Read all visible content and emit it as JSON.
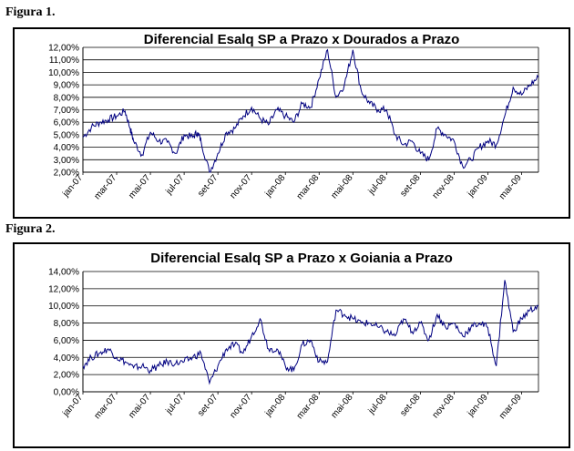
{
  "figures": [
    {
      "label": "Figura 1."
    },
    {
      "label": "Figura 2."
    }
  ],
  "chart_data": [
    {
      "type": "line",
      "title": "Diferencial Esalq SP a Prazo x Dourados a Prazo",
      "xlabel": "",
      "ylabel": "",
      "ylim": [
        0.02,
        0.12
      ],
      "y_ticks": [
        0.02,
        0.03,
        0.04,
        0.05,
        0.06,
        0.07,
        0.08,
        0.09,
        0.1,
        0.11,
        0.12
      ],
      "y_tick_labels": [
        "2,00%",
        "3,00%",
        "4,00%",
        "5,00%",
        "6,00%",
        "7,00%",
        "8,00%",
        "9,00%",
        "10,00%",
        "11,00%",
        "12,00%"
      ],
      "x_ticks": [
        "jan-07",
        "mar-07",
        "mai-07",
        "jul-07",
        "set-07",
        "nov-07",
        "jan-08",
        "mar-08",
        "mai-08",
        "jul-08",
        "set-08",
        "nov-08",
        "jan-09",
        "mar-09"
      ],
      "grid": "horizontal",
      "line_color": "#000080",
      "series": [
        {
          "x": [
            0,
            0.5,
            1,
            1.5,
            2,
            2.5,
            2.8,
            3,
            3.5,
            4,
            4.5,
            5,
            5.5,
            6,
            6.5,
            6.8,
            7,
            7.5,
            8,
            8.5,
            9,
            9.5,
            10,
            10.5,
            11,
            11.5,
            12,
            12.5,
            13,
            13.5,
            14,
            14.5,
            15,
            15.5,
            16,
            16.5,
            17,
            17.5,
            18,
            18.5,
            19,
            19.5,
            20,
            20.5,
            21,
            21.5,
            22,
            22.5,
            23,
            23.5,
            24,
            24.5,
            25,
            25.5,
            26,
            26.5,
            27
          ],
          "y": [
            0.048,
            0.056,
            0.06,
            0.062,
            0.065,
            0.069,
            0.055,
            0.045,
            0.034,
            0.052,
            0.045,
            0.044,
            0.035,
            0.05,
            0.048,
            0.052,
            0.045,
            0.02,
            0.035,
            0.052,
            0.055,
            0.065,
            0.072,
            0.063,
            0.058,
            0.07,
            0.065,
            0.06,
            0.075,
            0.072,
            0.095,
            0.118,
            0.08,
            0.09,
            0.118,
            0.085,
            0.075,
            0.07,
            0.07,
            0.05,
            0.042,
            0.045,
            0.035,
            0.03,
            0.055,
            0.05,
            0.045,
            0.025,
            0.03,
            0.04,
            0.045,
            0.042,
            0.065,
            0.088,
            0.082,
            0.09,
            0.096
          ]
        }
      ]
    },
    {
      "type": "line",
      "title": "Diferencial Esalq SP a Prazo x Goiania a Prazo",
      "xlabel": "",
      "ylabel": "",
      "ylim": [
        0.0,
        0.14
      ],
      "y_ticks": [
        0.0,
        0.02,
        0.04,
        0.06,
        0.08,
        0.1,
        0.12,
        0.14
      ],
      "y_tick_labels": [
        "0,00%",
        "2,00%",
        "4,00%",
        "6,00%",
        "8,00%",
        "10,00%",
        "12,00%",
        "14,00%"
      ],
      "x_ticks": [
        "jan-07",
        "mar-07",
        "mai-07",
        "jul-07",
        "set-07",
        "nov-07",
        "jan-08",
        "mar-08",
        "mai-08",
        "jul-08",
        "set-08",
        "nov-08",
        "jan-09",
        "mar-09"
      ],
      "grid": "horizontal",
      "line_color": "#000080",
      "series": [
        {
          "x": [
            0,
            0.5,
            1,
            1.5,
            2,
            2.5,
            3,
            3.5,
            4,
            4.5,
            5,
            5.5,
            6,
            6.5,
            7,
            7.5,
            8,
            8.5,
            9,
            9.5,
            10,
            10.5,
            11,
            11.5,
            12,
            12.5,
            13,
            13.5,
            14,
            14.5,
            15,
            15.5,
            16,
            16.5,
            17,
            17.5,
            18,
            18.5,
            19,
            19.5,
            20,
            20.5,
            21,
            21.5,
            22,
            22.5,
            23,
            23.5,
            24,
            24.5,
            25,
            25.5,
            26,
            26.5,
            27
          ],
          "y": [
            0.03,
            0.04,
            0.045,
            0.05,
            0.04,
            0.035,
            0.028,
            0.03,
            0.025,
            0.03,
            0.035,
            0.033,
            0.035,
            0.04,
            0.045,
            0.01,
            0.03,
            0.05,
            0.055,
            0.045,
            0.065,
            0.085,
            0.05,
            0.05,
            0.03,
            0.025,
            0.055,
            0.06,
            0.035,
            0.035,
            0.095,
            0.09,
            0.085,
            0.08,
            0.08,
            0.075,
            0.07,
            0.065,
            0.085,
            0.07,
            0.08,
            0.06,
            0.09,
            0.075,
            0.08,
            0.065,
            0.075,
            0.08,
            0.075,
            0.03,
            0.13,
            0.07,
            0.085,
            0.095,
            0.1
          ]
        }
      ]
    }
  ]
}
